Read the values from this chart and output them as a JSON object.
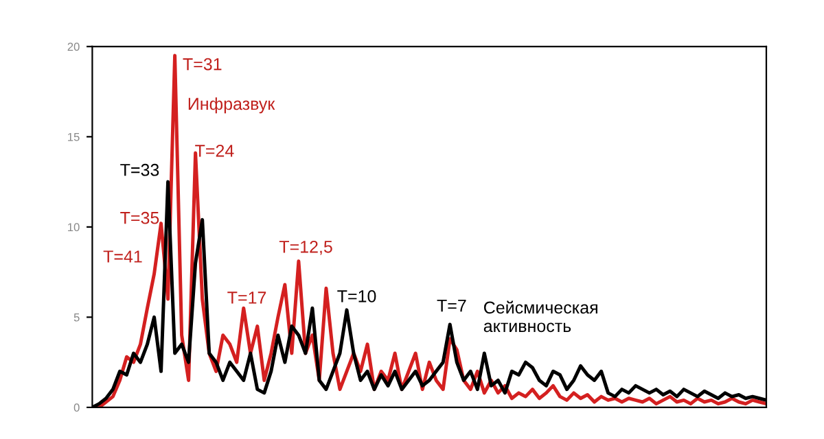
{
  "chart_data": {
    "type": "line",
    "categories": [
      null,
      null,
      null,
      null,
      null,
      null,
      null,
      null,
      null,
      null,
      null,
      null,
      null,
      null,
      null,
      null,
      null,
      null,
      null,
      null,
      null,
      null,
      null,
      null,
      null,
      null,
      null,
      null,
      null,
      null,
      null,
      null,
      null,
      null,
      null,
      null,
      null,
      null,
      null,
      null,
      null,
      null,
      null,
      null,
      null,
      null,
      null,
      null,
      null,
      null,
      null,
      null,
      null,
      null,
      null,
      null,
      null,
      null,
      null,
      null,
      null,
      null,
      null,
      null,
      null,
      null,
      null,
      null,
      null,
      null,
      null,
      null,
      null,
      null,
      null,
      null,
      null,
      null,
      null,
      null,
      null,
      null,
      null,
      null,
      null,
      null,
      null,
      null,
      null,
      null,
      null,
      null,
      null,
      null,
      null,
      null,
      null,
      null,
      null
    ],
    "series": [
      {
        "color": "#d42020",
        "values": [
          0,
          0,
          0.3,
          0.6,
          1.5,
          2.8,
          2.5,
          3.5,
          5.5,
          7.4,
          10.2,
          6,
          19.5,
          4,
          1.5,
          14.1,
          6,
          3,
          2,
          4,
          3.5,
          2.5,
          5.5,
          3,
          4.5,
          1.5,
          3,
          5,
          6.8,
          3,
          8.1,
          3,
          4,
          1.5,
          6.6,
          3,
          1,
          2,
          3,
          2,
          3.5,
          1,
          2,
          1.5,
          3,
          1,
          2,
          3,
          1,
          2.5,
          1.5,
          1,
          3.8,
          3.2,
          1.5,
          1,
          2,
          0.8,
          1.5,
          0.8,
          1.2,
          0.5,
          0.8,
          0.6,
          1,
          0.5,
          0.8,
          1.2,
          0.6,
          0.4,
          0.8,
          0.5,
          0.7,
          0.3,
          0.6,
          0.4,
          0.5,
          0.3,
          0.5,
          0.4,
          0.3,
          0.5,
          0.2,
          0.4,
          0.6,
          0.3,
          0.4,
          0.2,
          0.5,
          0.3,
          0.4,
          0.2,
          0.3,
          0.5,
          0.3,
          0.2,
          0.4,
          0.3,
          0.2
        ]
      },
      {
        "color": "#000000",
        "values": [
          0,
          0.2,
          0.5,
          1,
          2,
          1.8,
          3,
          2.5,
          3.5,
          5,
          2,
          12.5,
          3,
          3.5,
          2.5,
          8,
          10.4,
          3,
          2.5,
          1.5,
          2.5,
          2,
          1.5,
          3,
          1,
          0.8,
          2,
          4,
          2.5,
          4.5,
          4,
          3,
          5.5,
          1.5,
          1,
          2,
          3,
          5.4,
          3,
          1.5,
          2,
          1,
          1.8,
          1.2,
          2,
          1,
          1.5,
          2,
          1.2,
          1.5,
          2,
          2.5,
          4.6,
          2.5,
          1.5,
          2,
          1,
          3,
          1.2,
          1.5,
          0.8,
          2,
          1.8,
          2.5,
          2.2,
          1.5,
          1.2,
          2,
          1.8,
          1,
          1.5,
          2.3,
          1.8,
          1.5,
          2,
          0.8,
          0.6,
          1,
          0.8,
          1.2,
          1,
          0.8,
          1,
          0.7,
          0.9,
          0.6,
          1,
          0.8,
          0.6,
          0.9,
          0.7,
          0.5,
          0.8,
          0.6,
          0.7,
          0.5,
          0.6,
          0.5,
          0.4
        ]
      }
    ],
    "ylim": [
      0,
      20
    ],
    "yticks": [
      0,
      5,
      10,
      15,
      20
    ],
    "tick_labels": "y",
    "annotations": [
      "T=31",
      "Инфразвук",
      "T=24",
      "T=33",
      "T=35",
      "T=41",
      "T=17",
      "T=12,5",
      "T=10",
      "T=7",
      "Сейсмическая\nактивность"
    ]
  }
}
